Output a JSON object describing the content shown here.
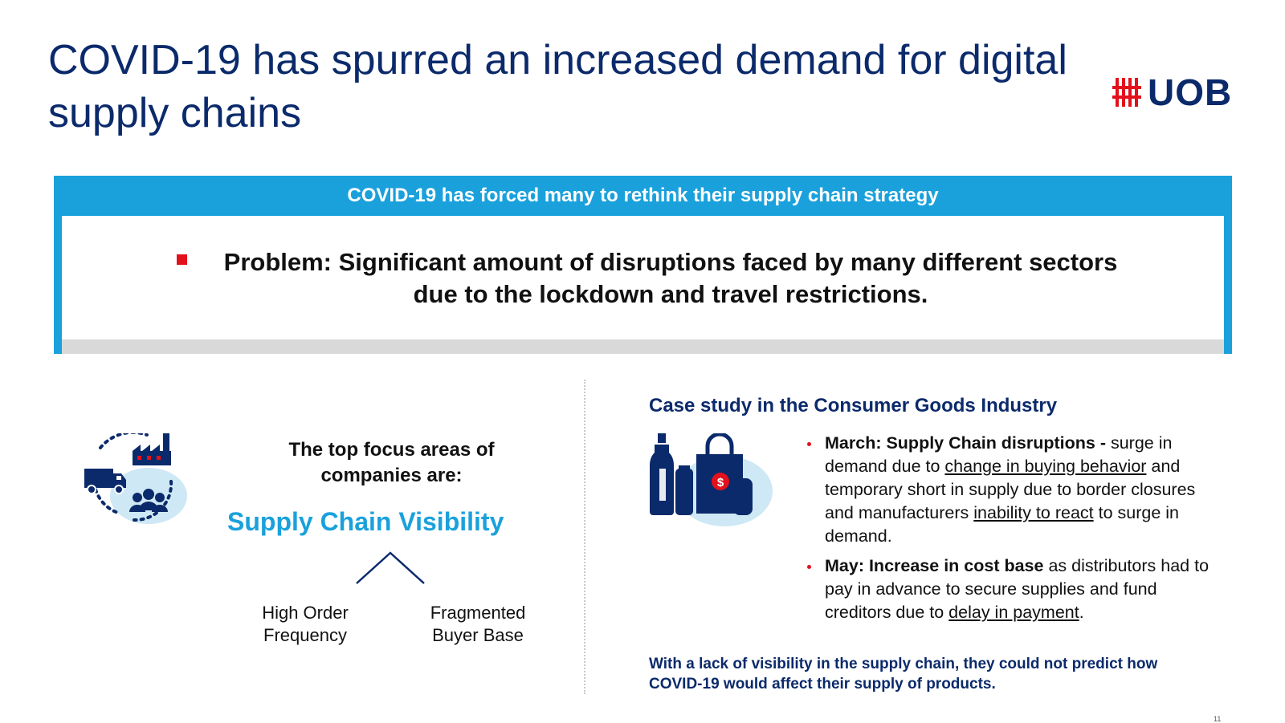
{
  "title": "COVID-19 has spurred an increased demand for digital supply chains",
  "logo": {
    "text": "UOB",
    "icon": "uob-logo-icon",
    "brand_color": "#e3111b"
  },
  "banner": {
    "header": "COVID-19 has forced many to rethink their supply chain strategy",
    "problem": "Problem: Significant amount of disruptions faced by many different sectors due to the lockdown and travel restrictions."
  },
  "left_panel": {
    "icon": "supply-chain-network-icon",
    "focus_intro": "The top focus areas of companies are:",
    "focus_area": "Supply Chain Visibility",
    "drivers": [
      "High Order Frequency",
      "Fragmented Buyer Base"
    ]
  },
  "case_study": {
    "title": "Case study in the Consumer Goods Industry",
    "icon": "consumer-goods-icon",
    "points": [
      {
        "lead": "March: Supply Chain disruptions -",
        "text_1": " surge in demand due to ",
        "link_1": "change in buying behavior",
        "text_2": " and temporary short in supply due to border closures and manufacturers ",
        "link_2": "inability to react",
        "text_3": " to surge in demand."
      },
      {
        "lead": "May:  Increase in cost base",
        "text_1": " as distributors had to pay in advance to secure supplies and fund creditors due to ",
        "link_1": "delay in payment",
        "text_2": "."
      }
    ],
    "conclusion": "With a lack of visibility in the supply chain, they could not predict how COVID-19 would affect their supply of products."
  },
  "page_number": "11",
  "colors": {
    "navy": "#0b2a6b",
    "accent_blue": "#1aa1dc",
    "red": "#e3111b"
  }
}
